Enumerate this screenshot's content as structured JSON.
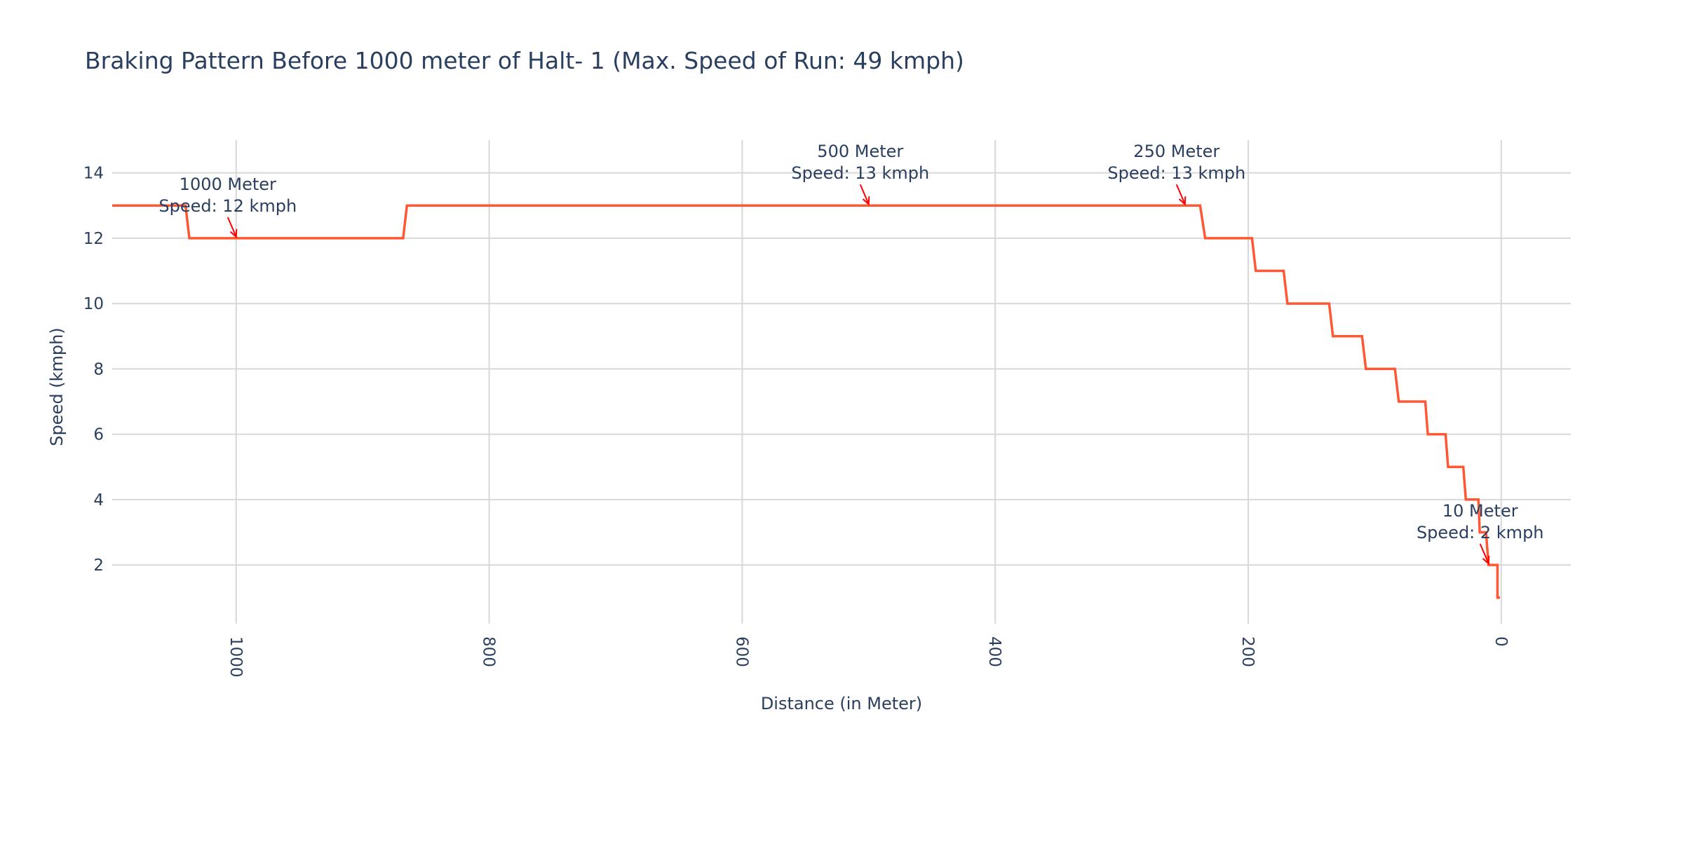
{
  "chart_data": {
    "type": "line",
    "title": "Braking Pattern Before 1000 meter of Halt- 1 (Max. Speed of Run: 49 kmph)",
    "xlabel": "Distance (in Meter)",
    "ylabel": "Speed (kmph)",
    "xlim": [
      1098,
      -55
    ],
    "ylim": [
      0.2,
      15
    ],
    "x_reversed": true,
    "grid": true,
    "legend": "none",
    "x_ticks": [
      1000,
      800,
      600,
      400,
      200,
      0
    ],
    "x_tick_labels": [
      "1000",
      "800",
      "600",
      "400",
      "200",
      "0"
    ],
    "y_ticks": [
      2,
      4,
      6,
      8,
      10,
      12,
      14
    ],
    "y_tick_labels": [
      "2",
      "4",
      "6",
      "8",
      "10",
      "12",
      "14"
    ],
    "series": [
      {
        "color": "#ff5733",
        "x": [
          1098,
          1040,
          1037,
          868,
          865,
          238,
          234,
          197,
          194,
          172,
          169,
          136,
          133,
          110,
          107,
          84,
          81,
          60,
          58,
          44,
          42,
          30,
          28,
          18,
          17,
          12,
          10,
          3,
          3,
          1
        ],
        "y": [
          13,
          13,
          12,
          12,
          13,
          13,
          12,
          12,
          11,
          11,
          10,
          10,
          9,
          9,
          8,
          8,
          7,
          7,
          6,
          6,
          5,
          5,
          4,
          4,
          3,
          3,
          2,
          2,
          1,
          1
        ]
      }
    ],
    "annotations": [
      {
        "line1": "1000 Meter",
        "line2": "Speed: 12 kmph",
        "x": 1000,
        "y": 12,
        "arrow_color": "#ff0000"
      },
      {
        "line1": "500 Meter",
        "line2": "Speed: 13 kmph",
        "x": 500,
        "y": 13,
        "arrow_color": "#ff0000"
      },
      {
        "line1": "250 Meter",
        "line2": "Speed: 13 kmph",
        "x": 250,
        "y": 13,
        "arrow_color": "#ff0000"
      },
      {
        "line1": "10 Meter",
        "line2": "Speed: 2 kmph",
        "x": 10,
        "y": 2,
        "arrow_color": "#ff0000"
      }
    ]
  }
}
